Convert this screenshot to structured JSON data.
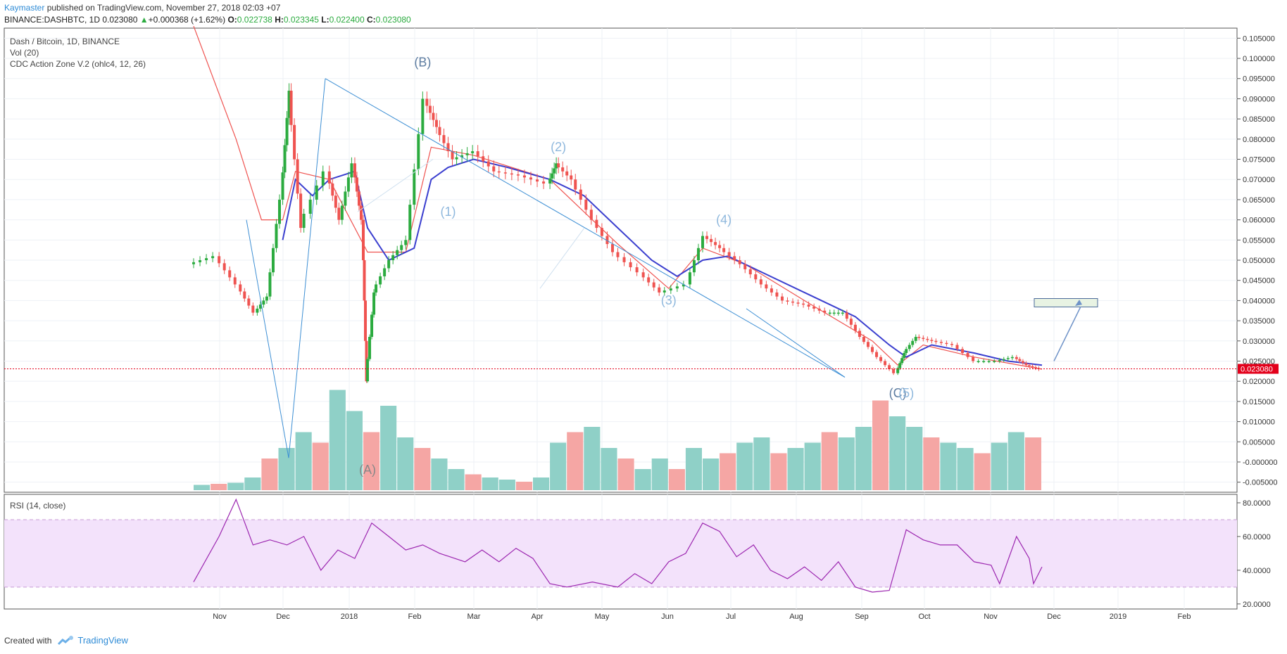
{
  "header": {
    "author": "Kaymaster",
    "published": "published on TradingView.com, November 27, 2018 02:03 +07",
    "symbol": "BINANCE:DASHBTC, 1D",
    "last": "0.023080",
    "change": "+0.000368 (+1.62%)",
    "o_label": "O:",
    "o": "0.022738",
    "h_label": "H:",
    "h": "0.023345",
    "l_label": "L:",
    "l": "0.022400",
    "c_label": "C:",
    "c": "0.023080"
  },
  "legend": {
    "title": "Dash / Bitcoin, 1D, BINANCE",
    "vol": "Vol (20)",
    "cdc": "CDC Action Zone V.2 (ohlc4, 12, 26)",
    "rsi": "RSI (14, close)"
  },
  "footer": {
    "created": "Created with",
    "brand": "TradingView"
  },
  "colors": {
    "up": "#2bab3f",
    "down": "#ef5350",
    "ema_slow": "#3b3fcf",
    "ema_fast": "#ef5350",
    "trend": "#3d8fd4",
    "wave_label": "#8fb8dd",
    "rsi": "#9c27b0",
    "rsi_band": "#f3e2fb",
    "last_price": "#e3001b"
  },
  "chart_data": [
    {
      "type": "candlestick",
      "title": "Dash / Bitcoin, 1D, BINANCE",
      "x_ticks": [
        "Nov",
        "Dec",
        "2018",
        "Feb",
        "Mar",
        "Apr",
        "May",
        "Jun",
        "Jul",
        "Aug",
        "Sep",
        "Oct",
        "Nov",
        "Dec",
        "2019",
        "Feb"
      ],
      "ylim": [
        -0.0075,
        0.1075
      ],
      "y_ticks": [
        "0.105000",
        "0.100000",
        "0.095000",
        "0.090000",
        "0.085000",
        "0.080000",
        "0.075000",
        "0.070000",
        "0.065000",
        "0.060000",
        "0.055000",
        "0.050000",
        "0.045000",
        "0.040000",
        "0.035000",
        "0.030000",
        "0.025000",
        "0.020000",
        "0.015000",
        "0.010000",
        "0.005000",
        "-0.000000",
        "-0.005000"
      ],
      "last_price_label": "0.023080",
      "close_series": [
        {
          "t": 0.0,
          "v": 0.049
        },
        {
          "t": 0.03,
          "v": 0.051
        },
        {
          "t": 0.055,
          "v": 0.044
        },
        {
          "t": 0.075,
          "v": 0.037
        },
        {
          "t": 0.09,
          "v": 0.041
        },
        {
          "t": 0.105,
          "v": 0.065
        },
        {
          "t": 0.115,
          "v": 0.092
        },
        {
          "t": 0.13,
          "v": 0.058
        },
        {
          "t": 0.16,
          "v": 0.072
        },
        {
          "t": 0.175,
          "v": 0.06
        },
        {
          "t": 0.19,
          "v": 0.074
        },
        {
          "t": 0.2,
          "v": 0.06
        },
        {
          "t": 0.205,
          "v": 0.02
        },
        {
          "t": 0.215,
          "v": 0.042
        },
        {
          "t": 0.235,
          "v": 0.05
        },
        {
          "t": 0.255,
          "v": 0.055
        },
        {
          "t": 0.275,
          "v": 0.09
        },
        {
          "t": 0.29,
          "v": 0.083
        },
        {
          "t": 0.31,
          "v": 0.075
        },
        {
          "t": 0.335,
          "v": 0.077
        },
        {
          "t": 0.36,
          "v": 0.072
        },
        {
          "t": 0.39,
          "v": 0.071
        },
        {
          "t": 0.42,
          "v": 0.069
        },
        {
          "t": 0.43,
          "v": 0.074
        },
        {
          "t": 0.45,
          "v": 0.07
        },
        {
          "t": 0.475,
          "v": 0.06
        },
        {
          "t": 0.5,
          "v": 0.052
        },
        {
          "t": 0.53,
          "v": 0.047
        },
        {
          "t": 0.555,
          "v": 0.042
        },
        {
          "t": 0.585,
          "v": 0.044
        },
        {
          "t": 0.605,
          "v": 0.056
        },
        {
          "t": 0.625,
          "v": 0.053
        },
        {
          "t": 0.65,
          "v": 0.049
        },
        {
          "t": 0.675,
          "v": 0.044
        },
        {
          "t": 0.7,
          "v": 0.04
        },
        {
          "t": 0.725,
          "v": 0.039
        },
        {
          "t": 0.75,
          "v": 0.037
        },
        {
          "t": 0.77,
          "v": 0.037
        },
        {
          "t": 0.79,
          "v": 0.031
        },
        {
          "t": 0.81,
          "v": 0.026
        },
        {
          "t": 0.83,
          "v": 0.022
        },
        {
          "t": 0.84,
          "v": 0.027
        },
        {
          "t": 0.855,
          "v": 0.031
        },
        {
          "t": 0.875,
          "v": 0.03
        },
        {
          "t": 0.9,
          "v": 0.029
        },
        {
          "t": 0.925,
          "v": 0.025
        },
        {
          "t": 0.95,
          "v": 0.025
        },
        {
          "t": 0.97,
          "v": 0.026
        },
        {
          "t": 0.985,
          "v": 0.024
        },
        {
          "t": 1.0,
          "v": 0.023
        }
      ],
      "ema_slow": [
        {
          "t": 0.105,
          "v": 0.055
        },
        {
          "t": 0.12,
          "v": 0.07
        },
        {
          "t": 0.14,
          "v": 0.066
        },
        {
          "t": 0.16,
          "v": 0.07
        },
        {
          "t": 0.19,
          "v": 0.072
        },
        {
          "t": 0.205,
          "v": 0.058
        },
        {
          "t": 0.23,
          "v": 0.05
        },
        {
          "t": 0.26,
          "v": 0.053
        },
        {
          "t": 0.28,
          "v": 0.07
        },
        {
          "t": 0.3,
          "v": 0.073
        },
        {
          "t": 0.33,
          "v": 0.075
        },
        {
          "t": 0.37,
          "v": 0.073
        },
        {
          "t": 0.42,
          "v": 0.07
        },
        {
          "t": 0.46,
          "v": 0.066
        },
        {
          "t": 0.5,
          "v": 0.058
        },
        {
          "t": 0.54,
          "v": 0.05
        },
        {
          "t": 0.57,
          "v": 0.046
        },
        {
          "t": 0.6,
          "v": 0.05
        },
        {
          "t": 0.63,
          "v": 0.051
        },
        {
          "t": 0.68,
          "v": 0.046
        },
        {
          "t": 0.73,
          "v": 0.041
        },
        {
          "t": 0.78,
          "v": 0.036
        },
        {
          "t": 0.82,
          "v": 0.029
        },
        {
          "t": 0.84,
          "v": 0.026
        },
        {
          "t": 0.87,
          "v": 0.029
        },
        {
          "t": 0.92,
          "v": 0.027
        },
        {
          "t": 0.96,
          "v": 0.025
        },
        {
          "t": 1.0,
          "v": 0.024
        }
      ],
      "ema_fast": [
        {
          "t": 0.0,
          "v": 0.108
        },
        {
          "t": 0.05,
          "v": 0.08
        },
        {
          "t": 0.08,
          "v": 0.06
        },
        {
          "t": 0.105,
          "v": 0.06
        },
        {
          "t": 0.12,
          "v": 0.072
        },
        {
          "t": 0.16,
          "v": 0.07
        },
        {
          "t": 0.205,
          "v": 0.052
        },
        {
          "t": 0.25,
          "v": 0.052
        },
        {
          "t": 0.28,
          "v": 0.078
        },
        {
          "t": 0.33,
          "v": 0.076
        },
        {
          "t": 0.42,
          "v": 0.07
        },
        {
          "t": 0.5,
          "v": 0.054
        },
        {
          "t": 0.56,
          "v": 0.043
        },
        {
          "t": 0.6,
          "v": 0.053
        },
        {
          "t": 0.65,
          "v": 0.049
        },
        {
          "t": 0.72,
          "v": 0.04
        },
        {
          "t": 0.8,
          "v": 0.03
        },
        {
          "t": 0.83,
          "v": 0.024
        },
        {
          "t": 0.86,
          "v": 0.029
        },
        {
          "t": 0.92,
          "v": 0.026
        },
        {
          "t": 1.0,
          "v": 0.023
        }
      ],
      "volume_relative": [
        0.05,
        0.06,
        0.07,
        0.12,
        0.3,
        0.4,
        0.55,
        0.45,
        0.95,
        0.75,
        0.55,
        0.8,
        0.5,
        0.4,
        0.3,
        0.2,
        0.15,
        0.12,
        0.1,
        0.08,
        0.12,
        0.45,
        0.55,
        0.6,
        0.4,
        0.3,
        0.2,
        0.3,
        0.2,
        0.4,
        0.3,
        0.35,
        0.45,
        0.5,
        0.35,
        0.4,
        0.45,
        0.55,
        0.5,
        0.6,
        0.85,
        0.7,
        0.6,
        0.5,
        0.45,
        0.4,
        0.35,
        0.45,
        0.55,
        0.5
      ],
      "annotations": [
        {
          "text": "(B)",
          "t": 0.27,
          "v": 0.098,
          "color": "#5e7da1"
        },
        {
          "text": "(A)",
          "t": 0.205,
          "v": -0.003,
          "color": "#888888"
        },
        {
          "text": "(1)",
          "t": 0.3,
          "v": 0.061,
          "color": "#8fb8dd"
        },
        {
          "text": "(2)",
          "t": 0.43,
          "v": 0.077,
          "color": "#8fb8dd"
        },
        {
          "text": "(3)",
          "t": 0.56,
          "v": 0.039,
          "color": "#8fb8dd"
        },
        {
          "text": "(4)",
          "t": 0.625,
          "v": 0.059,
          "color": "#8fb8dd"
        },
        {
          "text": "(C)",
          "t": 0.83,
          "v": 0.016,
          "color": "#5e7da1"
        },
        {
          "text": "(5)",
          "t": 0.84,
          "v": 0.016,
          "color": "#8fb8dd"
        }
      ]
    },
    {
      "type": "line",
      "title": "RSI (14, close)",
      "ylim": [
        17,
        85
      ],
      "y_ticks": [
        "80.0000",
        "60.0000",
        "40.0000",
        "20.0000"
      ],
      "band": [
        30,
        70
      ],
      "points": [
        {
          "t": 0.0,
          "v": 33
        },
        {
          "t": 0.03,
          "v": 60
        },
        {
          "t": 0.05,
          "v": 82
        },
        {
          "t": 0.07,
          "v": 55
        },
        {
          "t": 0.09,
          "v": 58
        },
        {
          "t": 0.11,
          "v": 55
        },
        {
          "t": 0.13,
          "v": 60
        },
        {
          "t": 0.15,
          "v": 40
        },
        {
          "t": 0.17,
          "v": 52
        },
        {
          "t": 0.19,
          "v": 47
        },
        {
          "t": 0.21,
          "v": 68
        },
        {
          "t": 0.23,
          "v": 60
        },
        {
          "t": 0.25,
          "v": 52
        },
        {
          "t": 0.27,
          "v": 55
        },
        {
          "t": 0.29,
          "v": 50
        },
        {
          "t": 0.32,
          "v": 45
        },
        {
          "t": 0.34,
          "v": 52
        },
        {
          "t": 0.36,
          "v": 45
        },
        {
          "t": 0.38,
          "v": 53
        },
        {
          "t": 0.4,
          "v": 47
        },
        {
          "t": 0.42,
          "v": 32
        },
        {
          "t": 0.44,
          "v": 30
        },
        {
          "t": 0.47,
          "v": 33
        },
        {
          "t": 0.5,
          "v": 30
        },
        {
          "t": 0.52,
          "v": 38
        },
        {
          "t": 0.54,
          "v": 32
        },
        {
          "t": 0.56,
          "v": 45
        },
        {
          "t": 0.58,
          "v": 50
        },
        {
          "t": 0.6,
          "v": 68
        },
        {
          "t": 0.62,
          "v": 63
        },
        {
          "t": 0.64,
          "v": 48
        },
        {
          "t": 0.66,
          "v": 55
        },
        {
          "t": 0.68,
          "v": 40
        },
        {
          "t": 0.7,
          "v": 35
        },
        {
          "t": 0.72,
          "v": 42
        },
        {
          "t": 0.74,
          "v": 34
        },
        {
          "t": 0.76,
          "v": 45
        },
        {
          "t": 0.78,
          "v": 30
        },
        {
          "t": 0.8,
          "v": 27
        },
        {
          "t": 0.82,
          "v": 28
        },
        {
          "t": 0.84,
          "v": 64
        },
        {
          "t": 0.86,
          "v": 58
        },
        {
          "t": 0.88,
          "v": 55
        },
        {
          "t": 0.9,
          "v": 55
        },
        {
          "t": 0.92,
          "v": 45
        },
        {
          "t": 0.94,
          "v": 43
        },
        {
          "t": 0.95,
          "v": 32
        },
        {
          "t": 0.97,
          "v": 60
        },
        {
          "t": 0.985,
          "v": 47
        },
        {
          "t": 0.99,
          "v": 32
        },
        {
          "t": 1.0,
          "v": 42
        }
      ]
    }
  ]
}
